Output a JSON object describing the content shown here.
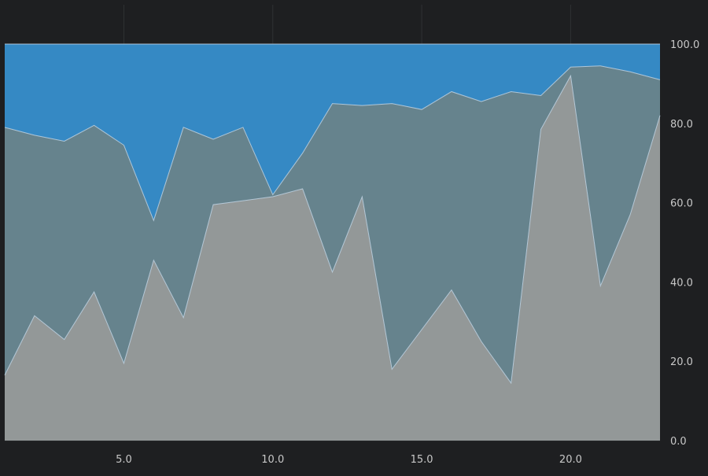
{
  "chart_data": {
    "type": "area",
    "stacked": "percent",
    "x": [
      1,
      2,
      3,
      4,
      5,
      6,
      7,
      8,
      9,
      10,
      11,
      12,
      13,
      14,
      15,
      16,
      17,
      18,
      19,
      20,
      21,
      22,
      23
    ],
    "series": [
      {
        "color": "#939898",
        "values": [
          16.5,
          31.5,
          25.5,
          37.5,
          19.5,
          45.5,
          31.0,
          59.5,
          60.5,
          61.5,
          63.5,
          42.5,
          61.5,
          18.0,
          28.0,
          38.0,
          25.0,
          14.5,
          78.5,
          92.0,
          39.0,
          57.0,
          82.0
        ]
      },
      {
        "color": "#66838d",
        "values": [
          62.5,
          45.5,
          50.0,
          42.0,
          55.0,
          10.0,
          48.0,
          16.5,
          18.5,
          0.5,
          9.0,
          42.5,
          23.0,
          67.0,
          55.5,
          50.0,
          60.5,
          73.5,
          8.5,
          2.2,
          55.5,
          36.0,
          9.0
        ]
      },
      {
        "color": "#3589c4",
        "values": [
          21.0,
          23.0,
          24.5,
          20.5,
          25.5,
          44.5,
          21.0,
          24.0,
          21.0,
          38.0,
          27.5,
          15.0,
          15.5,
          15.0,
          16.5,
          12.0,
          14.5,
          12.0,
          13.0,
          5.8,
          5.5,
          7.0,
          9.0
        ]
      }
    ],
    "x_ticks": [
      "5.0",
      "10.0",
      "15.0",
      "20.0"
    ],
    "x_tick_values": [
      5,
      10,
      15,
      20
    ],
    "y_ticks": [
      "0.0",
      "20.0",
      "40.0",
      "60.0",
      "80.0",
      "100.0"
    ],
    "y_tick_values": [
      0,
      20,
      40,
      60,
      80,
      100
    ],
    "xlim": [
      1,
      23
    ],
    "ylim": [
      0,
      100
    ],
    "y_axis_side": "right",
    "grid": true,
    "colors": {
      "background": "#1e1f21",
      "gridline": "#2f3133",
      "boundary_line": "#c0d3e4",
      "tick_text": "#c8c8c8"
    }
  }
}
